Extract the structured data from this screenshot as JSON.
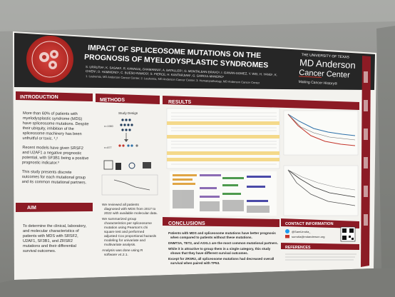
{
  "poster": {
    "society_seal": "American Society of Hematology",
    "title_line1": "IMPACT OF SPLICEOSOME MUTATIONS ON THE",
    "title_line2": "PROGNOSIS OF MYELODYSPLASTIC SYNDROMES",
    "authors_line1": "S. URRUTIA¹, K. SASAKI¹, R. KANAGAL-SHAMANNA², A. BATALLER¹, G. MONTALBAN-BRAVO¹, I. GANAN-GOMEZ, Y. WEI, H. YANG¹, K.",
    "authors_line2": "CHIEN¹, D. HAMMOND¹, C. BUESO-RAMOS², S. PIERCE, H. KANTARJIAN¹, G. GARCIA-MANERO¹",
    "affiliations": "1. Leukemia, MD Anderson Cancer Center; 2. Leukemia, MD Anderson Cancer Center; 3. Hematopathology, MD Anderson Cancer Center",
    "logo": {
      "univ": "THE UNIVERSITY OF TEXAS",
      "md": "MD Anderson",
      "cc": "Cancer Center",
      "tagline": "Making Cancer History®"
    },
    "introduction": {
      "heading": "INTRODUCTION",
      "p1": [
        "More than 60% of patients with",
        "myelodysplastic syndrome (MDS)",
        "have spliceosome mutations. Despite",
        "their ubiquity, inhibition of the",
        "spliceosome machinery has been",
        "unfruitful or toxic. ¹,²"
      ],
      "p2": [
        "Recent models have given SRSF2",
        "and U2AF1 a negative prognostic",
        "potential, with SF3B1 being a positive",
        "prognostic indicator.³"
      ],
      "p3": [
        "This study presents discrete",
        "outcomes for each mutational group",
        "and its common mutational partners."
      ]
    },
    "aim": {
      "heading": "AIM",
      "lines": [
        "To determine the clinical, laboratory,",
        "and molecular characteristics of",
        "patients with MDS with SRSF2,",
        "U2AF1, SF3B1, and ZRSR2",
        "mutations and their differential",
        "survival outcomes."
      ]
    },
    "methods": {
      "heading": "METHODS",
      "study_design": "Study Design",
      "n_total": "n=1980",
      "n_sub": "n=877",
      "bullets": [
        [
          "We reviewed all patients",
          "diagnosed with MDS from 2017 to",
          "2022 with available molecular data."
        ],
        [
          "We summarized group",
          "characteristics per spliceosome",
          "mutation using Pearson's chi",
          "square test and performed",
          "adjusted Cox proportional hazards",
          "modeling for univariate and",
          "multivariate analysis."
        ],
        [
          "Analysis was done using R",
          "software v4.2.1."
        ]
      ]
    },
    "results": {
      "heading": "RESULTS"
    },
    "conclusions": {
      "heading": "CONCLUSIONS",
      "bullets": [
        [
          "Patients with MDS and spliceosome mutations have better prognosis",
          "when compared to patients without these mutations."
        ],
        [
          "DNMT3A, TET2, and ASXL1 are the most common mutational partners."
        ],
        [
          "While it is attractive to group them in a single category, this study",
          "shows that they have different survival outcomes."
        ],
        [
          "Except for ZRSR2, all spliceosome mutations had decreased overall",
          "survival when paired with TP53."
        ]
      ]
    },
    "contact": {
      "heading": "CONTACT INFORMATION",
      "twitter": "@SamUrrutia_",
      "email": "surrutia@mdanderson.org"
    },
    "references": {
      "heading": "REFERENCES"
    }
  },
  "colors": {
    "header": "#262626",
    "maroon": "#8c1b25",
    "accent_orange": "#c4352b",
    "panel": "#f3f2ee",
    "board": "#8d8e8b"
  }
}
